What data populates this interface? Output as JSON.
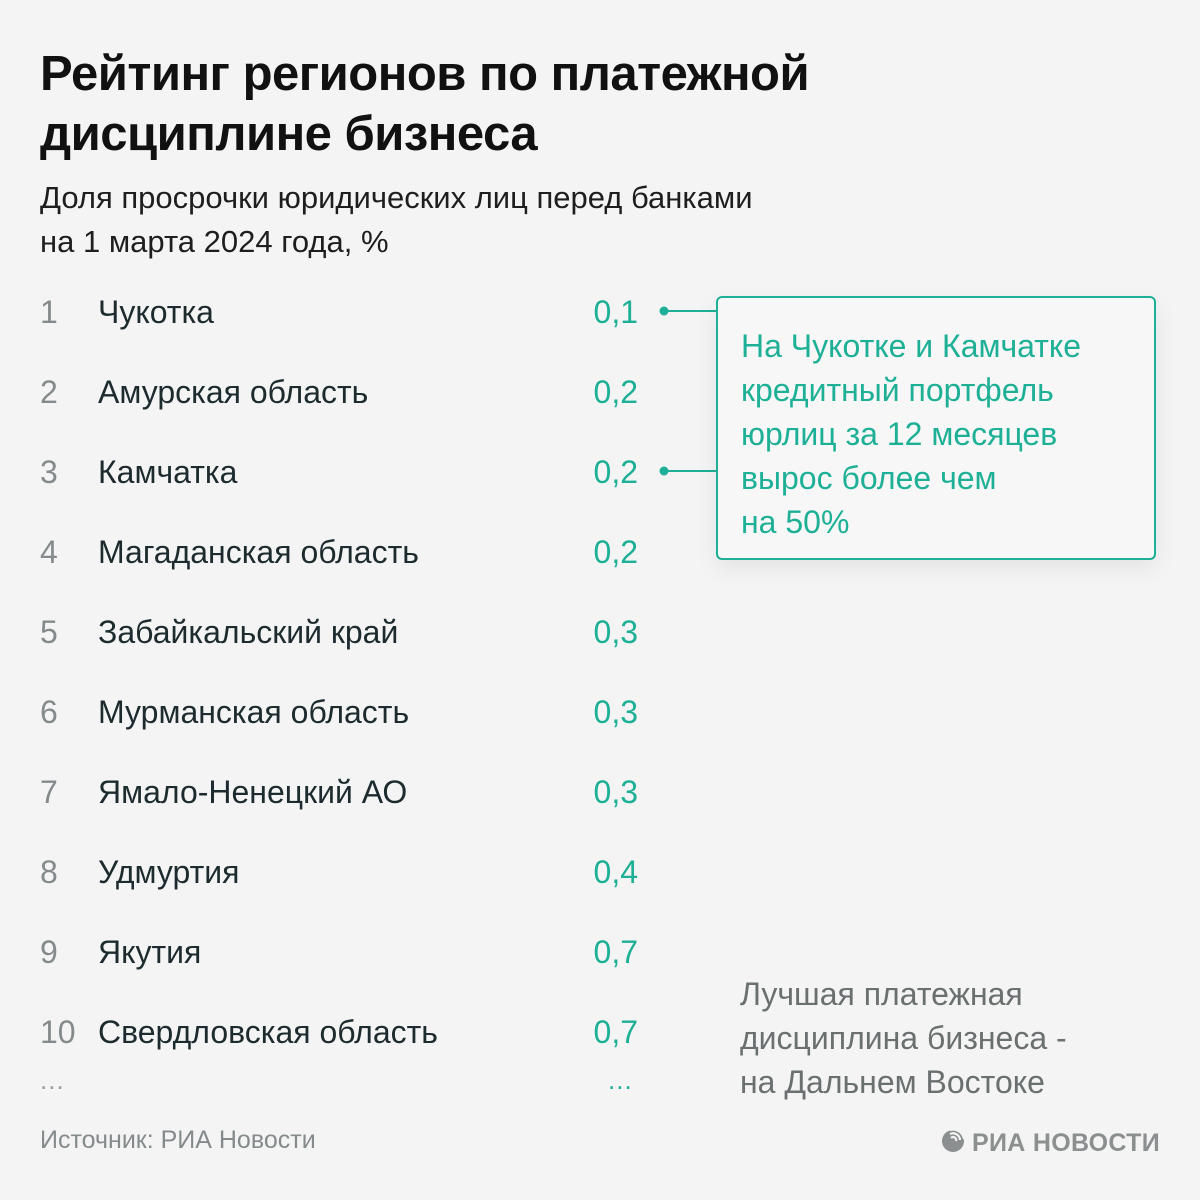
{
  "title": [
    "Рейтинг регионов по платежной",
    "дисциплине бизнеса"
  ],
  "subtitle": [
    "Доля просрочки юридических лиц перед банками",
    "на 1 марта 2024 года, %"
  ],
  "chart_data": {
    "type": "table",
    "title": "Рейтинг регионов по платежной дисциплине бизнеса",
    "subtitle": "Доля просрочки юридических лиц перед банками на 1 марта 2024 года, %",
    "columns": [
      "rank",
      "region",
      "value"
    ],
    "rows": [
      {
        "rank": "1",
        "region": "Чукотка",
        "value": "0,1"
      },
      {
        "rank": "2",
        "region": "Амурская область",
        "value": "0,2"
      },
      {
        "rank": "3",
        "region": "Камчатка",
        "value": "0,2"
      },
      {
        "rank": "4",
        "region": "Магаданская область",
        "value": "0,2"
      },
      {
        "rank": "5",
        "region": "Забайкальский край",
        "value": "0,3"
      },
      {
        "rank": "6",
        "region": "Мурманская область",
        "value": "0,3"
      },
      {
        "rank": "7",
        "region": "Ямало-Ненецкий АО",
        "value": "0,3"
      },
      {
        "rank": "8",
        "region": "Удмуртия",
        "value": "0,4"
      },
      {
        "rank": "9",
        "region": "Якутия",
        "value": "0,7"
      },
      {
        "rank": "10",
        "region": "Свердловская область",
        "value": "0,7"
      }
    ],
    "values": [
      0.1,
      0.2,
      0.2,
      0.2,
      0.3,
      0.3,
      0.3,
      0.4,
      0.7,
      0.7
    ],
    "ellipsis_left": "...",
    "ellipsis_right": "...",
    "annotation": {
      "linked_ranks": [
        1,
        3
      ],
      "lines": [
        "На Чукотке и Камчатке",
        "кредитный портфель",
        "юрлиц за 12 месяцев",
        "вырос более чем",
        "на 50%"
      ]
    }
  },
  "note": [
    "Лучшая платежная",
    "дисциплина бизнеса -",
    "на Дальнем Востоке"
  ],
  "footer": {
    "source": "Источник: РИА Новости",
    "logo_text": "РИА НОВОСТИ",
    "logo_icon": "ria-globe-icon"
  },
  "colors": {
    "accent": "#1db096",
    "background": "#f4f4f4",
    "text": "#1d2b2f",
    "muted": "#858b8c"
  }
}
